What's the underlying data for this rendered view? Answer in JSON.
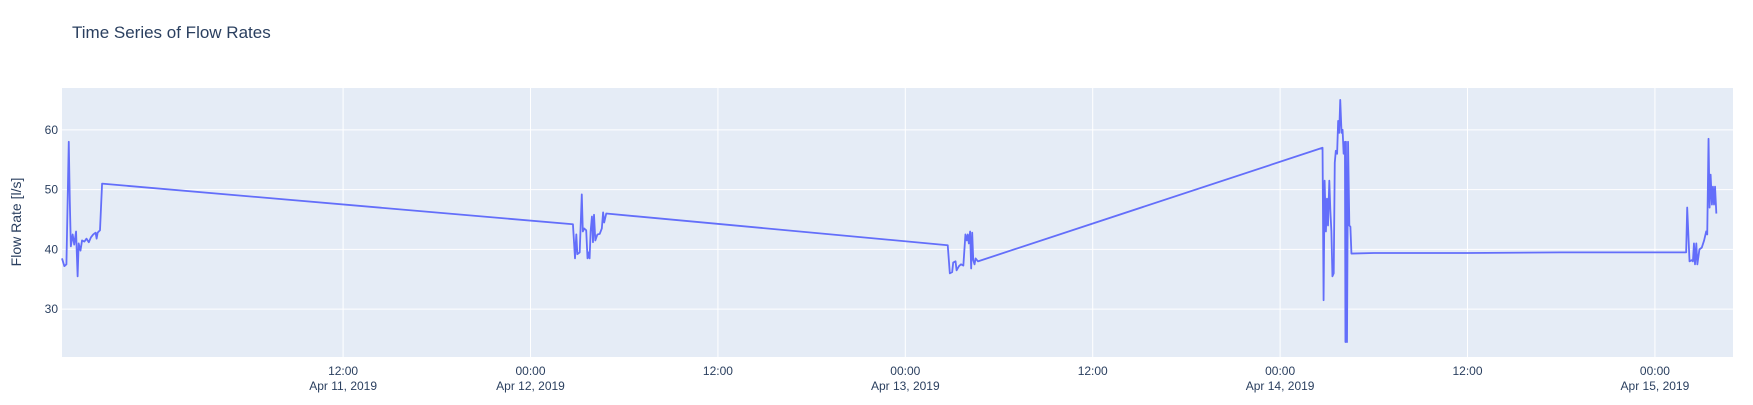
{
  "chart_data": {
    "type": "line",
    "title": "Time Series of Flow Rates",
    "xlabel": "",
    "ylabel": "Flow Rate [l/s]",
    "x_is_time": true,
    "xlim": [
      "2019-04-10 18:00",
      "2019-04-15 05:00"
    ],
    "ylim": [
      22,
      67
    ],
    "yticks": [
      30,
      40,
      50,
      60
    ],
    "xticks": [
      {
        "t": "2019-04-11 12:00",
        "l1": "12:00",
        "l2": "Apr 11, 2019"
      },
      {
        "t": "2019-04-12 00:00",
        "l1": "00:00",
        "l2": "Apr 12, 2019"
      },
      {
        "t": "2019-04-12 12:00",
        "l1": "12:00",
        "l2": ""
      },
      {
        "t": "2019-04-13 00:00",
        "l1": "00:00",
        "l2": "Apr 13, 2019"
      },
      {
        "t": "2019-04-13 12:00",
        "l1": "12:00",
        "l2": ""
      },
      {
        "t": "2019-04-14 00:00",
        "l1": "00:00",
        "l2": "Apr 14, 2019"
      },
      {
        "t": "2019-04-14 12:00",
        "l1": "12:00",
        "l2": ""
      },
      {
        "t": "2019-04-15 00:00",
        "l1": "00:00",
        "l2": "Apr 15, 2019"
      }
    ],
    "grid": true,
    "colors": {
      "line": "#636efa",
      "plot_bg": "#e5ecf6",
      "grid": "#ffffff",
      "text": "#2a3f5f"
    },
    "series": [
      {
        "points": [
          [
            "2019-04-10 18:00",
            38.5
          ],
          [
            "2019-04-10 18:09",
            37.2
          ],
          [
            "2019-04-10 18:17",
            37.5
          ],
          [
            "2019-04-10 18:26",
            58.0
          ],
          [
            "2019-04-10 18:30",
            48.0
          ],
          [
            "2019-04-10 18:34",
            40.5
          ],
          [
            "2019-04-10 18:41",
            42.5
          ],
          [
            "2019-04-10 18:47",
            40.8
          ],
          [
            "2019-04-10 18:54",
            43.0
          ],
          [
            "2019-04-10 19:00",
            35.5
          ],
          [
            "2019-04-10 19:04",
            41.0
          ],
          [
            "2019-04-10 19:11",
            39.8
          ],
          [
            "2019-04-10 19:17",
            41.5
          ],
          [
            "2019-04-10 19:26",
            41.3
          ],
          [
            "2019-04-10 19:34",
            41.8
          ],
          [
            "2019-04-10 19:43",
            41.2
          ],
          [
            "2019-04-10 19:51",
            42.0
          ],
          [
            "2019-04-10 20:00",
            42.5
          ],
          [
            "2019-04-10 20:09",
            42.8
          ],
          [
            "2019-04-10 20:13",
            41.8
          ],
          [
            "2019-04-10 20:17",
            42.8
          ],
          [
            "2019-04-10 20:26",
            43.2
          ],
          [
            "2019-04-10 20:34",
            51.0
          ],
          [
            "2019-04-12 02:43",
            44.2
          ],
          [
            "2019-04-12 02:51",
            38.5
          ],
          [
            "2019-04-12 02:56",
            42.5
          ],
          [
            "2019-04-12 03:00",
            39.2
          ],
          [
            "2019-04-12 03:09",
            39.5
          ],
          [
            "2019-04-12 03:17",
            49.2
          ],
          [
            "2019-04-12 03:21",
            43.0
          ],
          [
            "2019-04-12 03:26",
            43.5
          ],
          [
            "2019-04-12 03:34",
            43.2
          ],
          [
            "2019-04-12 03:39",
            38.5
          ],
          [
            "2019-04-12 03:43",
            39.5
          ],
          [
            "2019-04-12 03:47",
            38.5
          ],
          [
            "2019-04-12 03:51",
            43.0
          ],
          [
            "2019-04-12 03:56",
            45.5
          ],
          [
            "2019-04-12 04:00",
            41.2
          ],
          [
            "2019-04-12 04:04",
            45.8
          ],
          [
            "2019-04-12 04:09",
            41.5
          ],
          [
            "2019-04-12 04:17",
            42.5
          ],
          [
            "2019-04-12 04:26",
            42.6
          ],
          [
            "2019-04-12 04:34",
            43.5
          ],
          [
            "2019-04-12 04:39",
            46.2
          ],
          [
            "2019-04-12 04:43",
            44.5
          ],
          [
            "2019-04-12 04:51",
            46.0
          ],
          [
            "2019-04-13 02:43",
            40.7
          ],
          [
            "2019-04-13 02:51",
            36.0
          ],
          [
            "2019-04-13 03:00",
            36.2
          ],
          [
            "2019-04-13 03:04",
            37.8
          ],
          [
            "2019-04-13 03:13",
            38.0
          ],
          [
            "2019-04-13 03:17",
            36.5
          ],
          [
            "2019-04-13 03:26",
            37.2
          ],
          [
            "2019-04-13 03:34",
            37.5
          ],
          [
            "2019-04-13 03:43",
            37.3
          ],
          [
            "2019-04-13 03:51",
            42.5
          ],
          [
            "2019-04-13 03:56",
            41.5
          ],
          [
            "2019-04-13 04:00",
            42.5
          ],
          [
            "2019-04-13 04:04",
            41.0
          ],
          [
            "2019-04-13 04:09",
            43.0
          ],
          [
            "2019-04-13 04:13",
            36.8
          ],
          [
            "2019-04-13 04:17",
            42.8
          ],
          [
            "2019-04-13 04:21",
            38.2
          ],
          [
            "2019-04-13 04:26",
            37.5
          ],
          [
            "2019-04-13 04:30",
            38.5
          ],
          [
            "2019-04-13 04:39",
            38.0
          ],
          [
            "2019-04-14 02:43",
            57.0
          ],
          [
            "2019-04-14 02:47",
            31.5
          ],
          [
            "2019-04-14 02:51",
            51.5
          ],
          [
            "2019-04-14 02:56",
            43.0
          ],
          [
            "2019-04-14 03:00",
            48.5
          ],
          [
            "2019-04-14 03:04",
            44.0
          ],
          [
            "2019-04-14 03:09",
            51.5
          ],
          [
            "2019-04-14 03:13",
            46.5
          ],
          [
            "2019-04-14 03:17",
            43.0
          ],
          [
            "2019-04-14 03:21",
            35.5
          ],
          [
            "2019-04-14 03:26",
            36.0
          ],
          [
            "2019-04-14 03:30",
            54.5
          ],
          [
            "2019-04-14 03:34",
            56.5
          ],
          [
            "2019-04-14 03:39",
            56.0
          ],
          [
            "2019-04-14 03:43",
            61.5
          ],
          [
            "2019-04-14 03:47",
            59.5
          ],
          [
            "2019-04-14 03:51",
            65.0
          ],
          [
            "2019-04-14 03:56",
            59.5
          ],
          [
            "2019-04-14 04:00",
            60.0
          ],
          [
            "2019-04-14 04:04",
            56.0
          ],
          [
            "2019-04-14 04:09",
            58.0
          ],
          [
            "2019-04-14 04:11",
            24.5
          ],
          [
            "2019-04-14 04:13",
            58.0
          ],
          [
            "2019-04-14 04:17",
            24.5
          ],
          [
            "2019-04-14 04:21",
            58.0
          ],
          [
            "2019-04-14 04:26",
            44.0
          ],
          [
            "2019-04-14 04:30",
            43.8
          ],
          [
            "2019-04-14 04:34",
            39.3
          ],
          [
            "2019-04-14 06:00",
            39.4
          ],
          [
            "2019-04-14 12:00",
            39.4
          ],
          [
            "2019-04-14 18:00",
            39.5
          ],
          [
            "2019-04-15 02:00",
            39.5
          ],
          [
            "2019-04-15 02:04",
            47.0
          ],
          [
            "2019-04-15 02:13",
            38.0
          ],
          [
            "2019-04-15 02:21",
            38.2
          ],
          [
            "2019-04-15 02:26",
            38.0
          ],
          [
            "2019-04-15 02:30",
            41.0
          ],
          [
            "2019-04-15 02:34",
            37.5
          ],
          [
            "2019-04-15 02:39",
            41.0
          ],
          [
            "2019-04-15 02:43",
            37.5
          ],
          [
            "2019-04-15 02:51",
            40.0
          ],
          [
            "2019-04-15 03:00",
            40.3
          ],
          [
            "2019-04-15 03:09",
            41.5
          ],
          [
            "2019-04-15 03:17",
            43.0
          ],
          [
            "2019-04-15 03:21",
            42.5
          ],
          [
            "2019-04-15 03:26",
            58.5
          ],
          [
            "2019-04-15 03:30",
            47.0
          ],
          [
            "2019-04-15 03:34",
            52.5
          ],
          [
            "2019-04-15 03:39",
            47.5
          ],
          [
            "2019-04-15 03:43",
            50.5
          ],
          [
            "2019-04-15 03:47",
            47.5
          ],
          [
            "2019-04-15 03:51",
            50.5
          ],
          [
            "2019-04-15 03:56",
            46.0
          ]
        ]
      }
    ]
  }
}
